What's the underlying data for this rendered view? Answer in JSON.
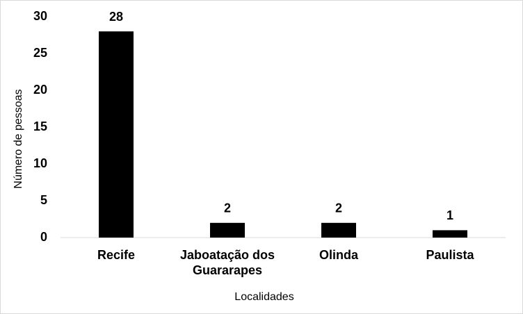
{
  "chart_data": {
    "type": "bar",
    "categories": [
      "Recife",
      "Jaboatação dos Guararapes",
      "Olinda",
      "Paulista"
    ],
    "values": [
      28,
      2,
      2,
      1
    ],
    "color": "#000000",
    "x_label": "Localidades",
    "y_label": "Número de pessoas",
    "ylim": [
      0,
      30
    ],
    "yticks": [
      0,
      5,
      10,
      15,
      20,
      25,
      30
    ],
    "grid": false,
    "data_labels": true
  }
}
